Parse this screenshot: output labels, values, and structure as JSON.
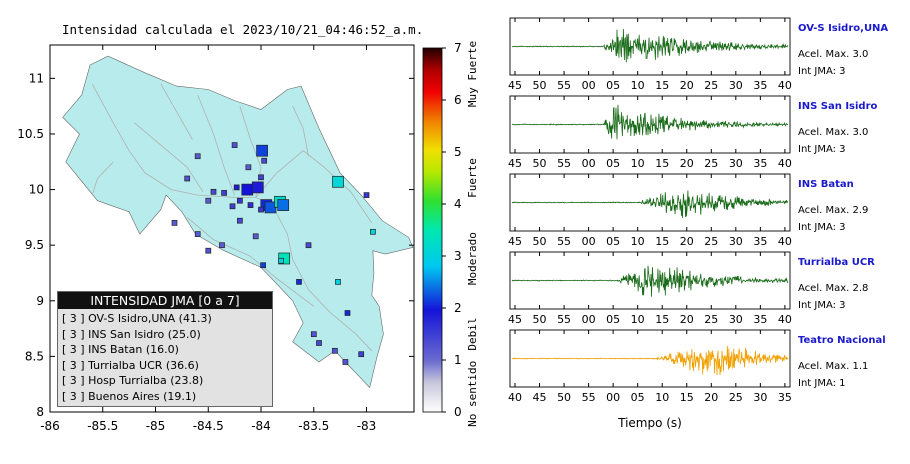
{
  "map": {
    "title": "Intensidad calculada el 2023/10/21_04:46:52_a.m.",
    "x_ticks": [
      "-86",
      "-85.5",
      "-85",
      "-84.5",
      "-84",
      "-83.5",
      "-83"
    ],
    "y_ticks": [
      "11",
      "10.5",
      "10",
      "9.5",
      "9",
      "8.5",
      "8"
    ],
    "land_color": "#b8ecec"
  },
  "colorbar": {
    "ticks": [
      "0",
      "1",
      "2",
      "3",
      "4",
      "5",
      "6",
      "7"
    ],
    "labels": [
      "No sentido",
      "Debil",
      "Moderado",
      "Fuerte",
      "Muy Fuerte"
    ]
  },
  "legend": {
    "title": "INTENSIDAD JMA [0 a 7]",
    "items": [
      "[ 3 ]  OV-S Isidro,UNA (41.3)",
      "[ 3 ]  INS San Isidro (25.0)",
      "[ 3 ]  INS Batan (16.0)",
      "[ 3 ]  Turrialba UCR (36.6)",
      "[ 3 ]  Hosp Turrialba (23.8)",
      "[ 3 ]  Buenos Aires (19.1)"
    ]
  },
  "waveforms": {
    "xlabel": "Tiempo (s)",
    "stations": [
      {
        "name": "OV-S Isidro,UNA",
        "accel": "Acel. Max. 3.0",
        "int": "Int JMA: 3",
        "ticks": [
          "45",
          "50",
          "55",
          "00",
          "05",
          "10",
          "15",
          "20",
          "25",
          "30",
          "35",
          "40"
        ],
        "color": "#1a6b1a"
      },
      {
        "name": "INS San Isidro",
        "accel": "Acel. Max. 3.0",
        "int": "Int JMA: 3",
        "ticks": [
          "45",
          "50",
          "55",
          "00",
          "05",
          "10",
          "15",
          "20",
          "25",
          "30",
          "35",
          "40"
        ],
        "color": "#1a6b1a"
      },
      {
        "name": "INS Batan",
        "accel": "Acel. Max. 2.9",
        "int": "Int JMA: 3",
        "ticks": [
          "45",
          "50",
          "55",
          "00",
          "05",
          "10",
          "15",
          "20",
          "25",
          "30",
          "35",
          "40"
        ],
        "color": "#1a6b1a"
      },
      {
        "name": "Turrialba UCR",
        "accel": "Acel. Max. 2.8",
        "int": "Int JMA: 3",
        "ticks": [
          "45",
          "50",
          "55",
          "00",
          "05",
          "10",
          "15",
          "20",
          "25",
          "30",
          "35",
          "40"
        ],
        "color": "#1a6b1a"
      },
      {
        "name": "Teatro Nacional",
        "accel": "Acel. Max. 1.1",
        "int": "Int JMA: 1",
        "ticks": [
          "40",
          "45",
          "50",
          "55",
          "00",
          "05",
          "10",
          "15",
          "20",
          "25",
          "30",
          "35"
        ],
        "color": "#f0a000"
      }
    ]
  },
  "chart_data": [
    {
      "type": "scatter",
      "title": "Intensidad calculada el 2023/10/21_04:46:52_a.m.",
      "xlabel": "",
      "ylabel": "",
      "xlim": [
        -86,
        -82.55
      ],
      "ylim": [
        8,
        11.3
      ],
      "colorbar": {
        "min": 0,
        "max": 7,
        "labels": [
          "No sentido",
          "Debil",
          "Moderado",
          "Fuerte",
          "Muy Fuerte"
        ]
      },
      "points": [
        {
          "x": -83.99,
          "y": 10.35,
          "intensity": 2.2,
          "size": "m"
        },
        {
          "x": -84.13,
          "y": 10.0,
          "intensity": 2.0,
          "size": "m"
        },
        {
          "x": -84.03,
          "y": 10.02,
          "intensity": 1.9,
          "size": "m"
        },
        {
          "x": -83.95,
          "y": 9.86,
          "intensity": 2.1,
          "size": "m"
        },
        {
          "x": -83.91,
          "y": 9.84,
          "intensity": 2.3,
          "size": "m"
        },
        {
          "x": -83.82,
          "y": 9.89,
          "intensity": 3.2,
          "size": "m"
        },
        {
          "x": -83.79,
          "y": 9.86,
          "intensity": 2.4,
          "size": "m"
        },
        {
          "x": -83.27,
          "y": 10.07,
          "intensity": 3.1,
          "size": "m"
        },
        {
          "x": -82.94,
          "y": 9.62,
          "intensity": 3.1,
          "size": "s"
        },
        {
          "x": -83.78,
          "y": 9.38,
          "intensity": 3.4,
          "size": "m"
        },
        {
          "x": -83.81,
          "y": 9.36,
          "intensity": 3.0,
          "size": "s"
        },
        {
          "x": -83.98,
          "y": 9.32,
          "intensity": 2.2,
          "size": "s"
        },
        {
          "x": -83.64,
          "y": 9.17,
          "intensity": 2.1,
          "size": "s"
        },
        {
          "x": -83.27,
          "y": 9.17,
          "intensity": 3.0,
          "size": "s"
        },
        {
          "x": -83.18,
          "y": 8.89,
          "intensity": 2.1,
          "size": "s"
        },
        {
          "x": -84.23,
          "y": 10.02,
          "intensity": 1.9,
          "size": "s"
        },
        {
          "x": -84.35,
          "y": 9.97,
          "intensity": 1.5,
          "size": "s"
        },
        {
          "x": -84.2,
          "y": 9.9,
          "intensity": 1.6,
          "size": "s"
        },
        {
          "x": -84.1,
          "y": 9.86,
          "intensity": 1.7,
          "size": "s"
        },
        {
          "x": -84.27,
          "y": 9.85,
          "intensity": 1.5,
          "size": "s"
        },
        {
          "x": -84.0,
          "y": 9.82,
          "intensity": 1.6,
          "size": "s"
        },
        {
          "x": -84.45,
          "y": 9.98,
          "intensity": 1.4,
          "size": "s"
        },
        {
          "x": -84.5,
          "y": 9.9,
          "intensity": 1.2,
          "size": "s"
        },
        {
          "x": -84.2,
          "y": 9.72,
          "intensity": 1.4,
          "size": "s"
        },
        {
          "x": -83.97,
          "y": 10.26,
          "intensity": 1.4,
          "size": "s"
        },
        {
          "x": -84.12,
          "y": 10.2,
          "intensity": 1.2,
          "size": "s"
        },
        {
          "x": -84.0,
          "y": 10.11,
          "intensity": 1.5,
          "size": "s"
        },
        {
          "x": -83.0,
          "y": 9.95,
          "intensity": 1.6,
          "size": "s"
        },
        {
          "x": -83.55,
          "y": 9.5,
          "intensity": 1.4,
          "size": "s"
        },
        {
          "x": -84.6,
          "y": 10.3,
          "intensity": 1.2,
          "size": "s"
        },
        {
          "x": -84.7,
          "y": 10.1,
          "intensity": 1.3,
          "size": "s"
        },
        {
          "x": -84.82,
          "y": 9.7,
          "intensity": 1.2,
          "size": "s"
        },
        {
          "x": -84.5,
          "y": 9.45,
          "intensity": 1.3,
          "size": "s"
        },
        {
          "x": -84.37,
          "y": 9.5,
          "intensity": 1.2,
          "size": "s"
        },
        {
          "x": -84.05,
          "y": 9.58,
          "intensity": 1.2,
          "size": "s"
        },
        {
          "x": -83.45,
          "y": 8.62,
          "intensity": 1.4,
          "size": "s"
        },
        {
          "x": -83.3,
          "y": 8.55,
          "intensity": 1.3,
          "size": "s"
        },
        {
          "x": -83.05,
          "y": 8.52,
          "intensity": 1.5,
          "size": "s"
        },
        {
          "x": -83.5,
          "y": 8.7,
          "intensity": 1.3,
          "size": "s"
        },
        {
          "x": -83.2,
          "y": 8.45,
          "intensity": 1.3,
          "size": "s"
        },
        {
          "x": -84.25,
          "y": 10.4,
          "intensity": 1.3,
          "size": "s"
        },
        {
          "x": -84.6,
          "y": 9.6,
          "intensity": 1.2,
          "size": "s"
        }
      ]
    },
    {
      "type": "line",
      "title": "",
      "xlabel": "Tiempo (s)",
      "ylabel": "",
      "series": [
        {
          "name": "OV-S Isidro,UNA",
          "values": [
            3.0
          ],
          "intensity": 3
        },
        {
          "name": "INS San Isidro",
          "values": [
            3.0
          ],
          "intensity": 3
        },
        {
          "name": "INS Batan",
          "values": [
            2.9
          ],
          "intensity": 3
        },
        {
          "name": "Turrialba UCR",
          "values": [
            2.8
          ],
          "intensity": 3
        },
        {
          "name": "Teatro Nacional",
          "values": [
            1.1
          ],
          "intensity": 1
        }
      ]
    }
  ]
}
